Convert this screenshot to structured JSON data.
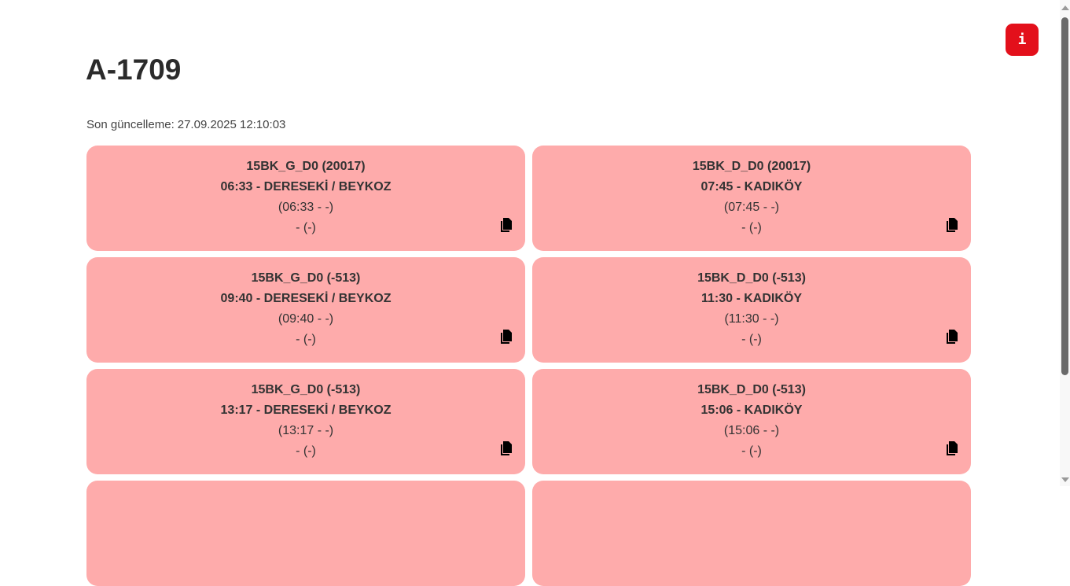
{
  "header": {
    "title": "A-1709",
    "updated_label": "Son güncelleme:",
    "updated_value": "27.09.2025 12:10:03",
    "info_icon": "i"
  },
  "colors": {
    "card_bg": "#feabab",
    "info_button": "#e3101b"
  },
  "cards": [
    {
      "route": "15BK_G_D0 (20017)",
      "departure": "06:33 - DERESEKİ / BEYKOZ",
      "times": "(06:33 - -)",
      "status": "- (-)"
    },
    {
      "route": "15BK_D_D0 (20017)",
      "departure": "07:45 - KADIKÖY",
      "times": "(07:45 - -)",
      "status": "- (-)"
    },
    {
      "route": "15BK_G_D0 (-513)",
      "departure": "09:40 - DERESEKİ / BEYKOZ",
      "times": "(09:40 - -)",
      "status": "- (-)"
    },
    {
      "route": "15BK_D_D0 (-513)",
      "departure": "11:30 - KADIKÖY",
      "times": "(11:30 - -)",
      "status": "- (-)"
    },
    {
      "route": "15BK_G_D0 (-513)",
      "departure": "13:17 - DERESEKİ / BEYKOZ",
      "times": "(13:17 - -)",
      "status": "- (-)"
    },
    {
      "route": "15BK_D_D0 (-513)",
      "departure": "15:06 - KADIKÖY",
      "times": "(15:06 - -)",
      "status": "- (-)"
    },
    {
      "route": "",
      "departure": "",
      "times": "",
      "status": ""
    },
    {
      "route": "",
      "departure": "",
      "times": "",
      "status": ""
    }
  ]
}
